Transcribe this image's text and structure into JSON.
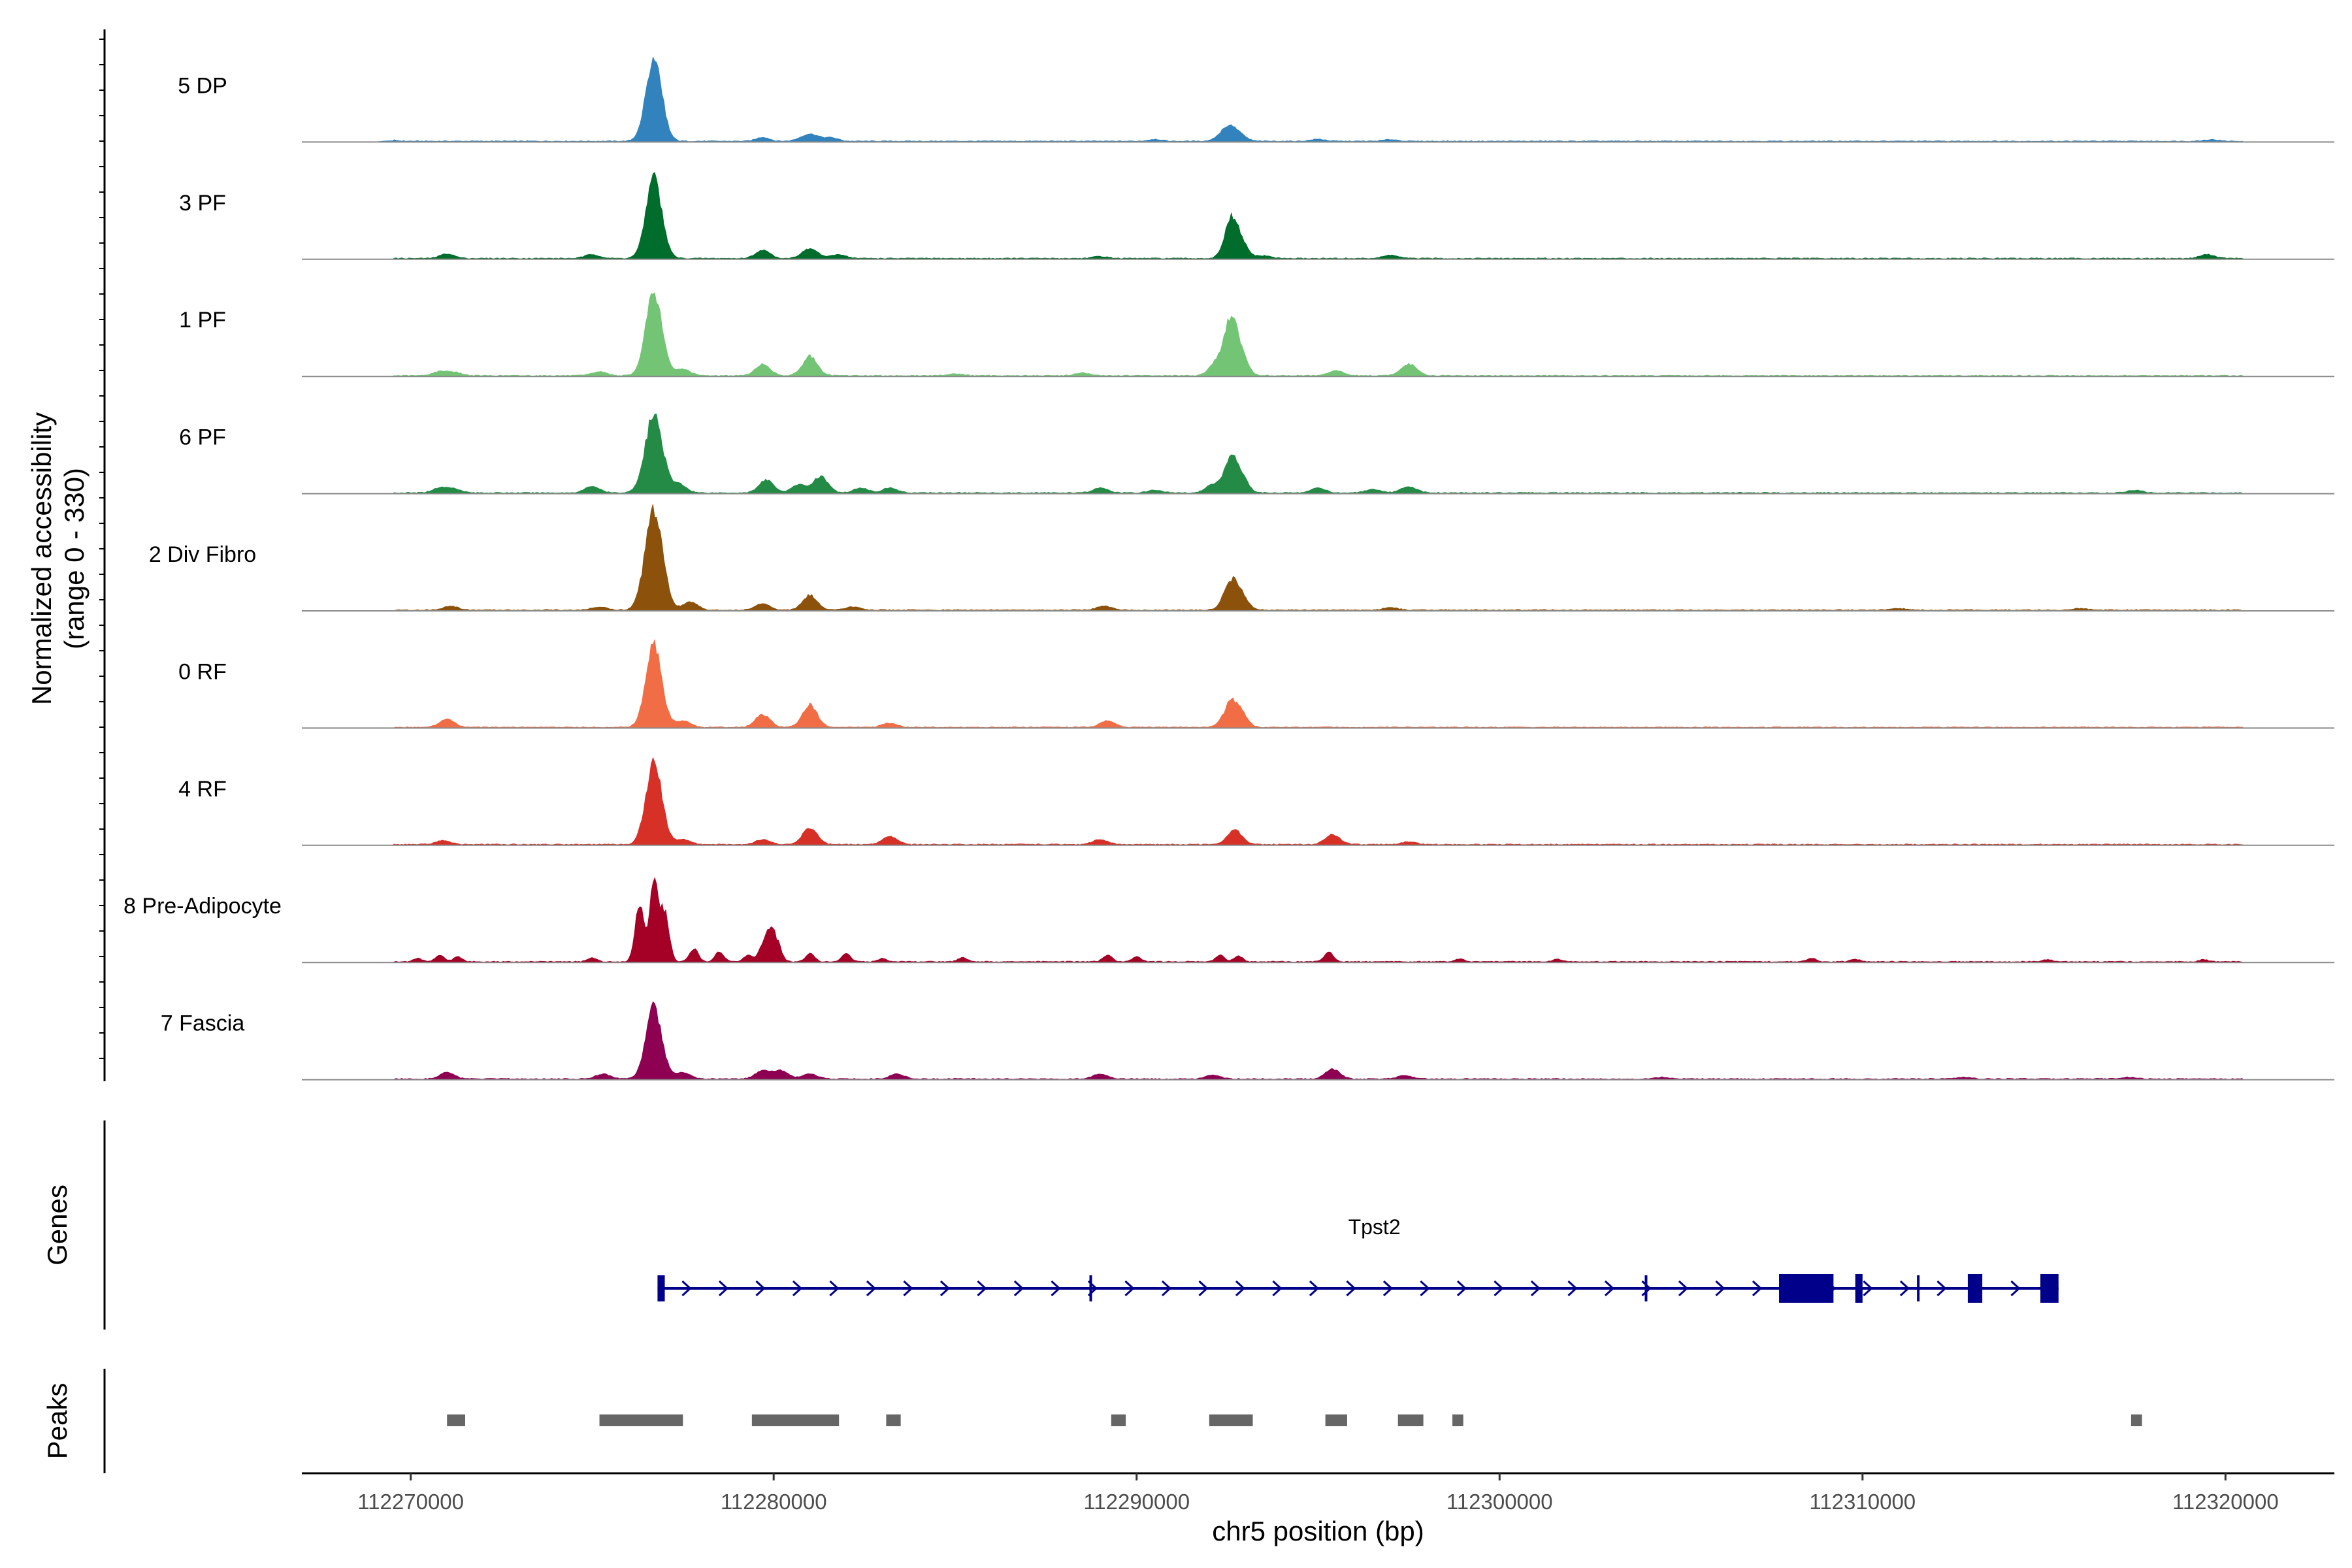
{
  "chart_data": {
    "type": "area",
    "title": "",
    "region": {
      "chrom": "chr5",
      "start": 112267000,
      "end": 112323000
    },
    "coverage": {
      "ylabel_line1": "Normalized accessibility",
      "ylabel_line2": "(range 0 - 330)",
      "yrange": [
        0,
        330
      ],
      "tracks": [
        {
          "name": "5 DP",
          "color": "#3182BD",
          "peaks": [
            [
              112269400,
              4,
              0.2
            ],
            [
              112276700,
              255,
              0.22
            ],
            [
              112279700,
              12,
              0.18
            ],
            [
              112281000,
              22,
              0.25
            ],
            [
              112281600,
              10,
              0.18
            ],
            [
              112290500,
              6,
              0.18
            ],
            [
              112292500,
              40,
              0.22
            ],
            [
              112292800,
              18,
              0.2
            ],
            [
              112295000,
              6,
              0.2
            ],
            [
              112297000,
              5,
              0.2
            ],
            [
              112319600,
              5,
              0.2
            ]
          ]
        },
        {
          "name": "3 PF",
          "color": "#006D2C",
          "peaks": [
            [
              112271000,
              14,
              0.2
            ],
            [
              112275000,
              12,
              0.2
            ],
            [
              112276700,
              245,
              0.22
            ],
            [
              112279700,
              25,
              0.2
            ],
            [
              112281000,
              30,
              0.22
            ],
            [
              112281800,
              12,
              0.2
            ],
            [
              112289000,
              6,
              0.2
            ],
            [
              112292600,
              120,
              0.18
            ],
            [
              112292900,
              40,
              0.18
            ],
            [
              112293500,
              8,
              0.2
            ],
            [
              112297000,
              10,
              0.2
            ],
            [
              112319500,
              12,
              0.2
            ]
          ]
        },
        {
          "name": "1 PF",
          "color": "#74C476",
          "peaks": [
            [
              112270800,
              12,
              0.2
            ],
            [
              112271200,
              10,
              0.2
            ],
            [
              112275200,
              12,
              0.2
            ],
            [
              112276700,
              260,
              0.22
            ],
            [
              112277500,
              20,
              0.2
            ],
            [
              112279700,
              35,
              0.2
            ],
            [
              112281000,
              60,
              0.2
            ],
            [
              112285000,
              6,
              0.2
            ],
            [
              112288500,
              8,
              0.2
            ],
            [
              112292200,
              40,
              0.2
            ],
            [
              112292600,
              170,
              0.18
            ],
            [
              112292900,
              50,
              0.18
            ],
            [
              112295500,
              15,
              0.2
            ],
            [
              112297500,
              35,
              0.22
            ]
          ]
        },
        {
          "name": "6 PF",
          "color": "#238B45",
          "peaks": [
            [
              112270800,
              15,
              0.2
            ],
            [
              112271200,
              12,
              0.2
            ],
            [
              112275000,
              20,
              0.2
            ],
            [
              112276700,
              240,
              0.24
            ],
            [
              112277400,
              25,
              0.2
            ],
            [
              112279800,
              40,
              0.2
            ],
            [
              112280700,
              25,
              0.2
            ],
            [
              112281300,
              50,
              0.2
            ],
            [
              112282400,
              15,
              0.2
            ],
            [
              112283200,
              15,
              0.2
            ],
            [
              112289000,
              15,
              0.2
            ],
            [
              112290500,
              8,
              0.2
            ],
            [
              112292100,
              25,
              0.2
            ],
            [
              112292600,
              110,
              0.18
            ],
            [
              112292900,
              40,
              0.18
            ],
            [
              112295000,
              15,
              0.2
            ],
            [
              112296500,
              10,
              0.2
            ],
            [
              112297500,
              18,
              0.22
            ],
            [
              112317500,
              8,
              0.2
            ]
          ]
        },
        {
          "name": "2 Div Fibro",
          "color": "#8C510A",
          "peaks": [
            [
              112271100,
              12,
              0.2
            ],
            [
              112275200,
              10,
              0.2
            ],
            [
              112276700,
              310,
              0.24
            ],
            [
              112277700,
              25,
              0.2
            ],
            [
              112279700,
              20,
              0.2
            ],
            [
              112281000,
              45,
              0.2
            ],
            [
              112282200,
              10,
              0.2
            ],
            [
              112289100,
              12,
              0.2
            ],
            [
              112292600,
              85,
              0.2
            ],
            [
              112292900,
              35,
              0.18
            ],
            [
              112297000,
              8,
              0.2
            ],
            [
              112311000,
              5,
              0.2
            ],
            [
              112316000,
              5,
              0.2
            ]
          ]
        },
        {
          "name": "0 RF",
          "color": "#F16D45",
          "peaks": [
            [
              112271000,
              25,
              0.2
            ],
            [
              112276700,
              250,
              0.22
            ],
            [
              112277500,
              20,
              0.2
            ],
            [
              112279700,
              40,
              0.2
            ],
            [
              112281000,
              70,
              0.2
            ],
            [
              112283200,
              12,
              0.2
            ],
            [
              112289200,
              20,
              0.2
            ],
            [
              112292600,
              75,
              0.2
            ],
            [
              112292900,
              30,
              0.18
            ]
          ]
        },
        {
          "name": "4 RF",
          "color": "#D73027",
          "peaks": [
            [
              112270900,
              12,
              0.2
            ],
            [
              112276700,
              250,
              0.22
            ],
            [
              112277500,
              15,
              0.2
            ],
            [
              112279700,
              15,
              0.2
            ],
            [
              112281000,
              50,
              0.2
            ],
            [
              112283200,
              25,
              0.2
            ],
            [
              112289000,
              15,
              0.2
            ],
            [
              112292700,
              45,
              0.2
            ],
            [
              112295400,
              30,
              0.2
            ],
            [
              112297500,
              8,
              0.2
            ]
          ]
        },
        {
          "name": "8 Pre-Adipocyte",
          "color": "#A50026",
          "peaks": [
            [
              112270200,
              10,
              0.12
            ],
            [
              112270800,
              20,
              0.12
            ],
            [
              112271300,
              15,
              0.12
            ],
            [
              112275000,
              12,
              0.12
            ],
            [
              112276300,
              180,
              0.12
            ],
            [
              112276700,
              250,
              0.12
            ],
            [
              112277000,
              150,
              0.12
            ],
            [
              112277800,
              40,
              0.12
            ],
            [
              112278500,
              30,
              0.12
            ],
            [
              112279300,
              20,
              0.12
            ],
            [
              112279700,
              45,
              0.12
            ],
            [
              112279900,
              80,
              0.12
            ],
            [
              112280100,
              50,
              0.12
            ],
            [
              112281000,
              25,
              0.12
            ],
            [
              112282000,
              25,
              0.12
            ],
            [
              112283000,
              10,
              0.12
            ],
            [
              112285200,
              12,
              0.12
            ],
            [
              112289200,
              20,
              0.12
            ],
            [
              112290000,
              15,
              0.12
            ],
            [
              112292300,
              20,
              0.12
            ],
            [
              112292800,
              18,
              0.12
            ],
            [
              112295300,
              30,
              0.12
            ],
            [
              112298900,
              8,
              0.12
            ],
            [
              112301600,
              8,
              0.12
            ],
            [
              112308600,
              10,
              0.12
            ],
            [
              112309800,
              8,
              0.12
            ],
            [
              112315100,
              6,
              0.12
            ],
            [
              112319400,
              6,
              0.12
            ]
          ]
        },
        {
          "name": "7 Fascia",
          "color": "#8E0152",
          "peaks": [
            [
              112271000,
              20,
              0.2
            ],
            [
              112275300,
              15,
              0.2
            ],
            [
              112276700,
              220,
              0.22
            ],
            [
              112277500,
              20,
              0.2
            ],
            [
              112279700,
              25,
              0.2
            ],
            [
              112280200,
              25,
              0.2
            ],
            [
              112281000,
              15,
              0.2
            ],
            [
              112283400,
              15,
              0.2
            ],
            [
              112289000,
              15,
              0.2
            ],
            [
              112292100,
              12,
              0.2
            ],
            [
              112295400,
              30,
              0.2
            ],
            [
              112297400,
              10,
              0.2
            ],
            [
              112304500,
              5,
              0.2
            ],
            [
              112312800,
              5,
              0.2
            ],
            [
              112317300,
              5,
              0.2
            ]
          ]
        }
      ]
    },
    "genes": {
      "label": "Genes",
      "gene_name": "Tpst2",
      "color": "#00008B",
      "start": 112276800,
      "end": 112315400,
      "strand": "+",
      "exons": [
        [
          112276800,
          112277000
        ],
        [
          112288700,
          112288750
        ],
        [
          112304000,
          112304050
        ],
        [
          112307700,
          112309200
        ],
        [
          112309800,
          112310000
        ],
        [
          112311500,
          112311550
        ],
        [
          112312900,
          112313300
        ],
        [
          112314900,
          112315400
        ]
      ],
      "thick_exons": [
        [
          112307700,
          112309200
        ],
        [
          112309800,
          112310000
        ],
        [
          112312900,
          112313300
        ],
        [
          112314900,
          112315400
        ]
      ]
    },
    "peaks": {
      "label": "Peaks",
      "color": "#666666",
      "intervals": [
        [
          112271000,
          112271500
        ],
        [
          112275200,
          112277500
        ],
        [
          112279400,
          112281800
        ],
        [
          112283100,
          112283500
        ],
        [
          112289300,
          112289700
        ],
        [
          112292000,
          112293200
        ],
        [
          112295200,
          112295800
        ],
        [
          112297200,
          112297900
        ],
        [
          112298700,
          112299000
        ],
        [
          112317400,
          112317700
        ]
      ]
    },
    "xaxis": {
      "label": "chr5 position (bp)",
      "ticks": [
        112270000,
        112280000,
        112290000,
        112300000,
        112310000,
        112320000
      ]
    }
  }
}
